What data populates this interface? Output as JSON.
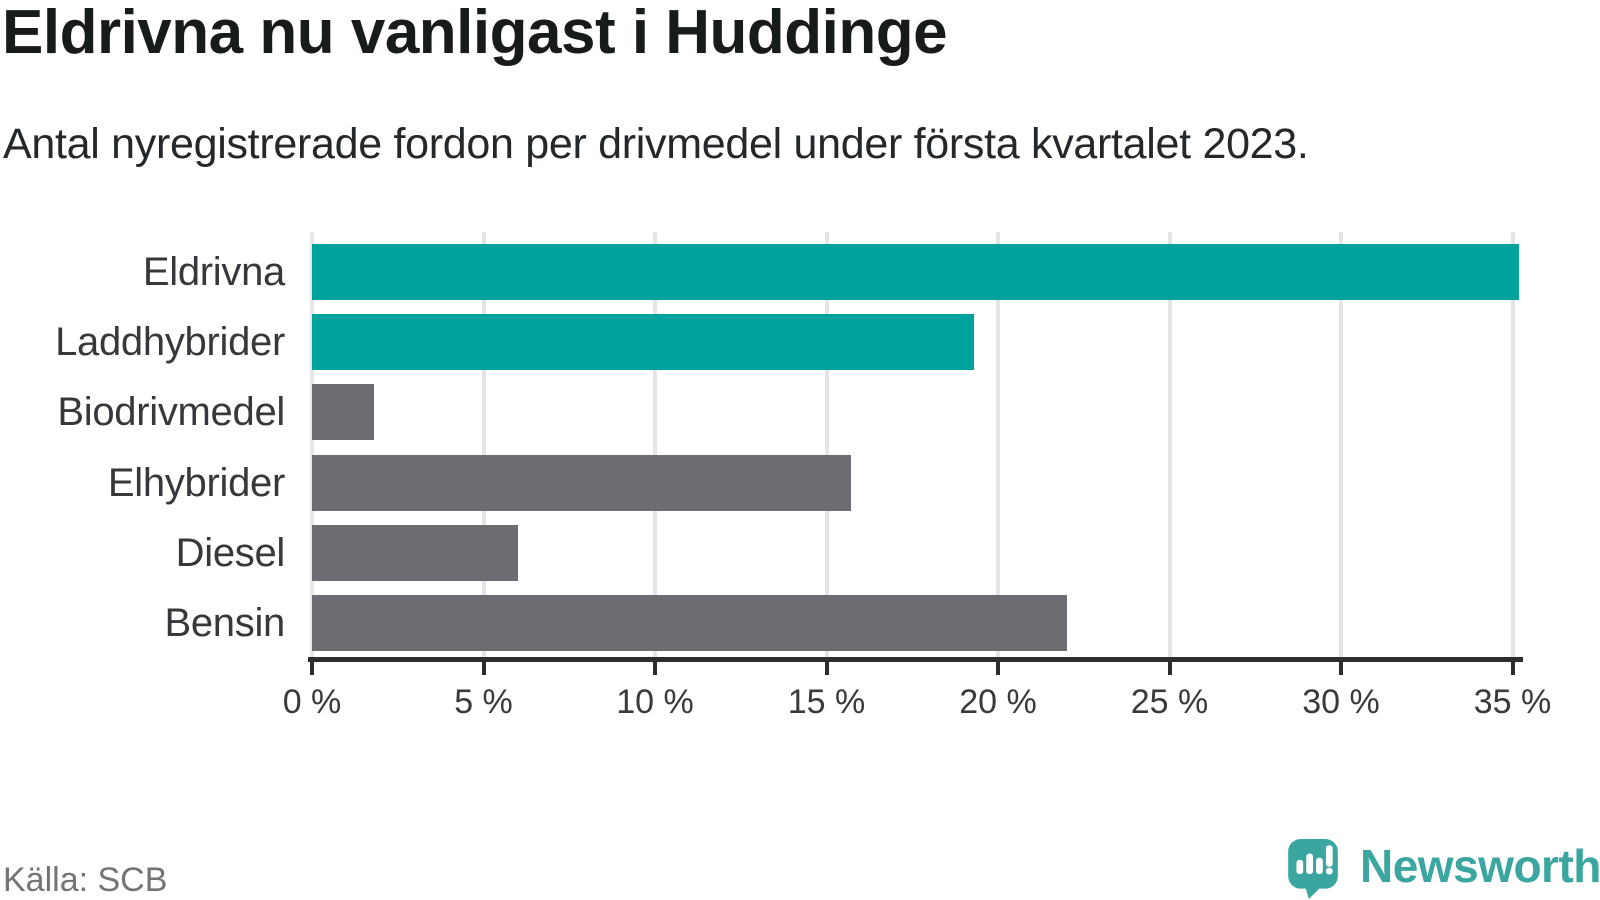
{
  "header": {
    "title": "Eldrivna nu vanligast i Huddinge",
    "subtitle": "Antal nyregistrerade fordon per drivmedel under första kvartalet 2023."
  },
  "footer": {
    "source": "Källa: SCB"
  },
  "logo": {
    "wordmark": "Newsworthy",
    "icon": "newsworthy-speech-bubble-bar-chart-icon"
  },
  "colors": {
    "highlight_bar": "#00a39b",
    "default_bar": "#6c6c72",
    "gridline": "#e5e5e7",
    "axis": "#2d2d2d",
    "tick_label": "#3a3a3a",
    "category_label": "#36383b",
    "source_text": "#737378",
    "logo": "#3ba6a0"
  },
  "chart_data": {
    "type": "bar",
    "orientation": "horizontal",
    "title": "Eldrivna nu vanligast i Huddinge",
    "subtitle": "Antal nyregistrerade fordon per drivmedel under första kvartalet 2023.",
    "source": "Källa: SCB",
    "categories": [
      "Eldrivna",
      "Laddhybrider",
      "Biodrivmedel",
      "Elhybrider",
      "Diesel",
      "Bensin"
    ],
    "values": [
      35.2,
      19.3,
      1.8,
      15.7,
      6.0,
      22.0
    ],
    "unit": "%",
    "bar_colors": [
      "#00a39b",
      "#00a39b",
      "#6c6c72",
      "#6c6c72",
      "#6c6c72",
      "#6c6c72"
    ],
    "xlim": [
      0,
      35.3
    ],
    "x_ticks": {
      "values": [
        0,
        5,
        10,
        15,
        20,
        25,
        30,
        35
      ],
      "labels": [
        "0 %",
        "5 %",
        "10 %",
        "15 %",
        "20 %",
        "25 %",
        "30 %",
        "35 %"
      ]
    },
    "grid": true,
    "legend": "none",
    "value_labels": false
  }
}
